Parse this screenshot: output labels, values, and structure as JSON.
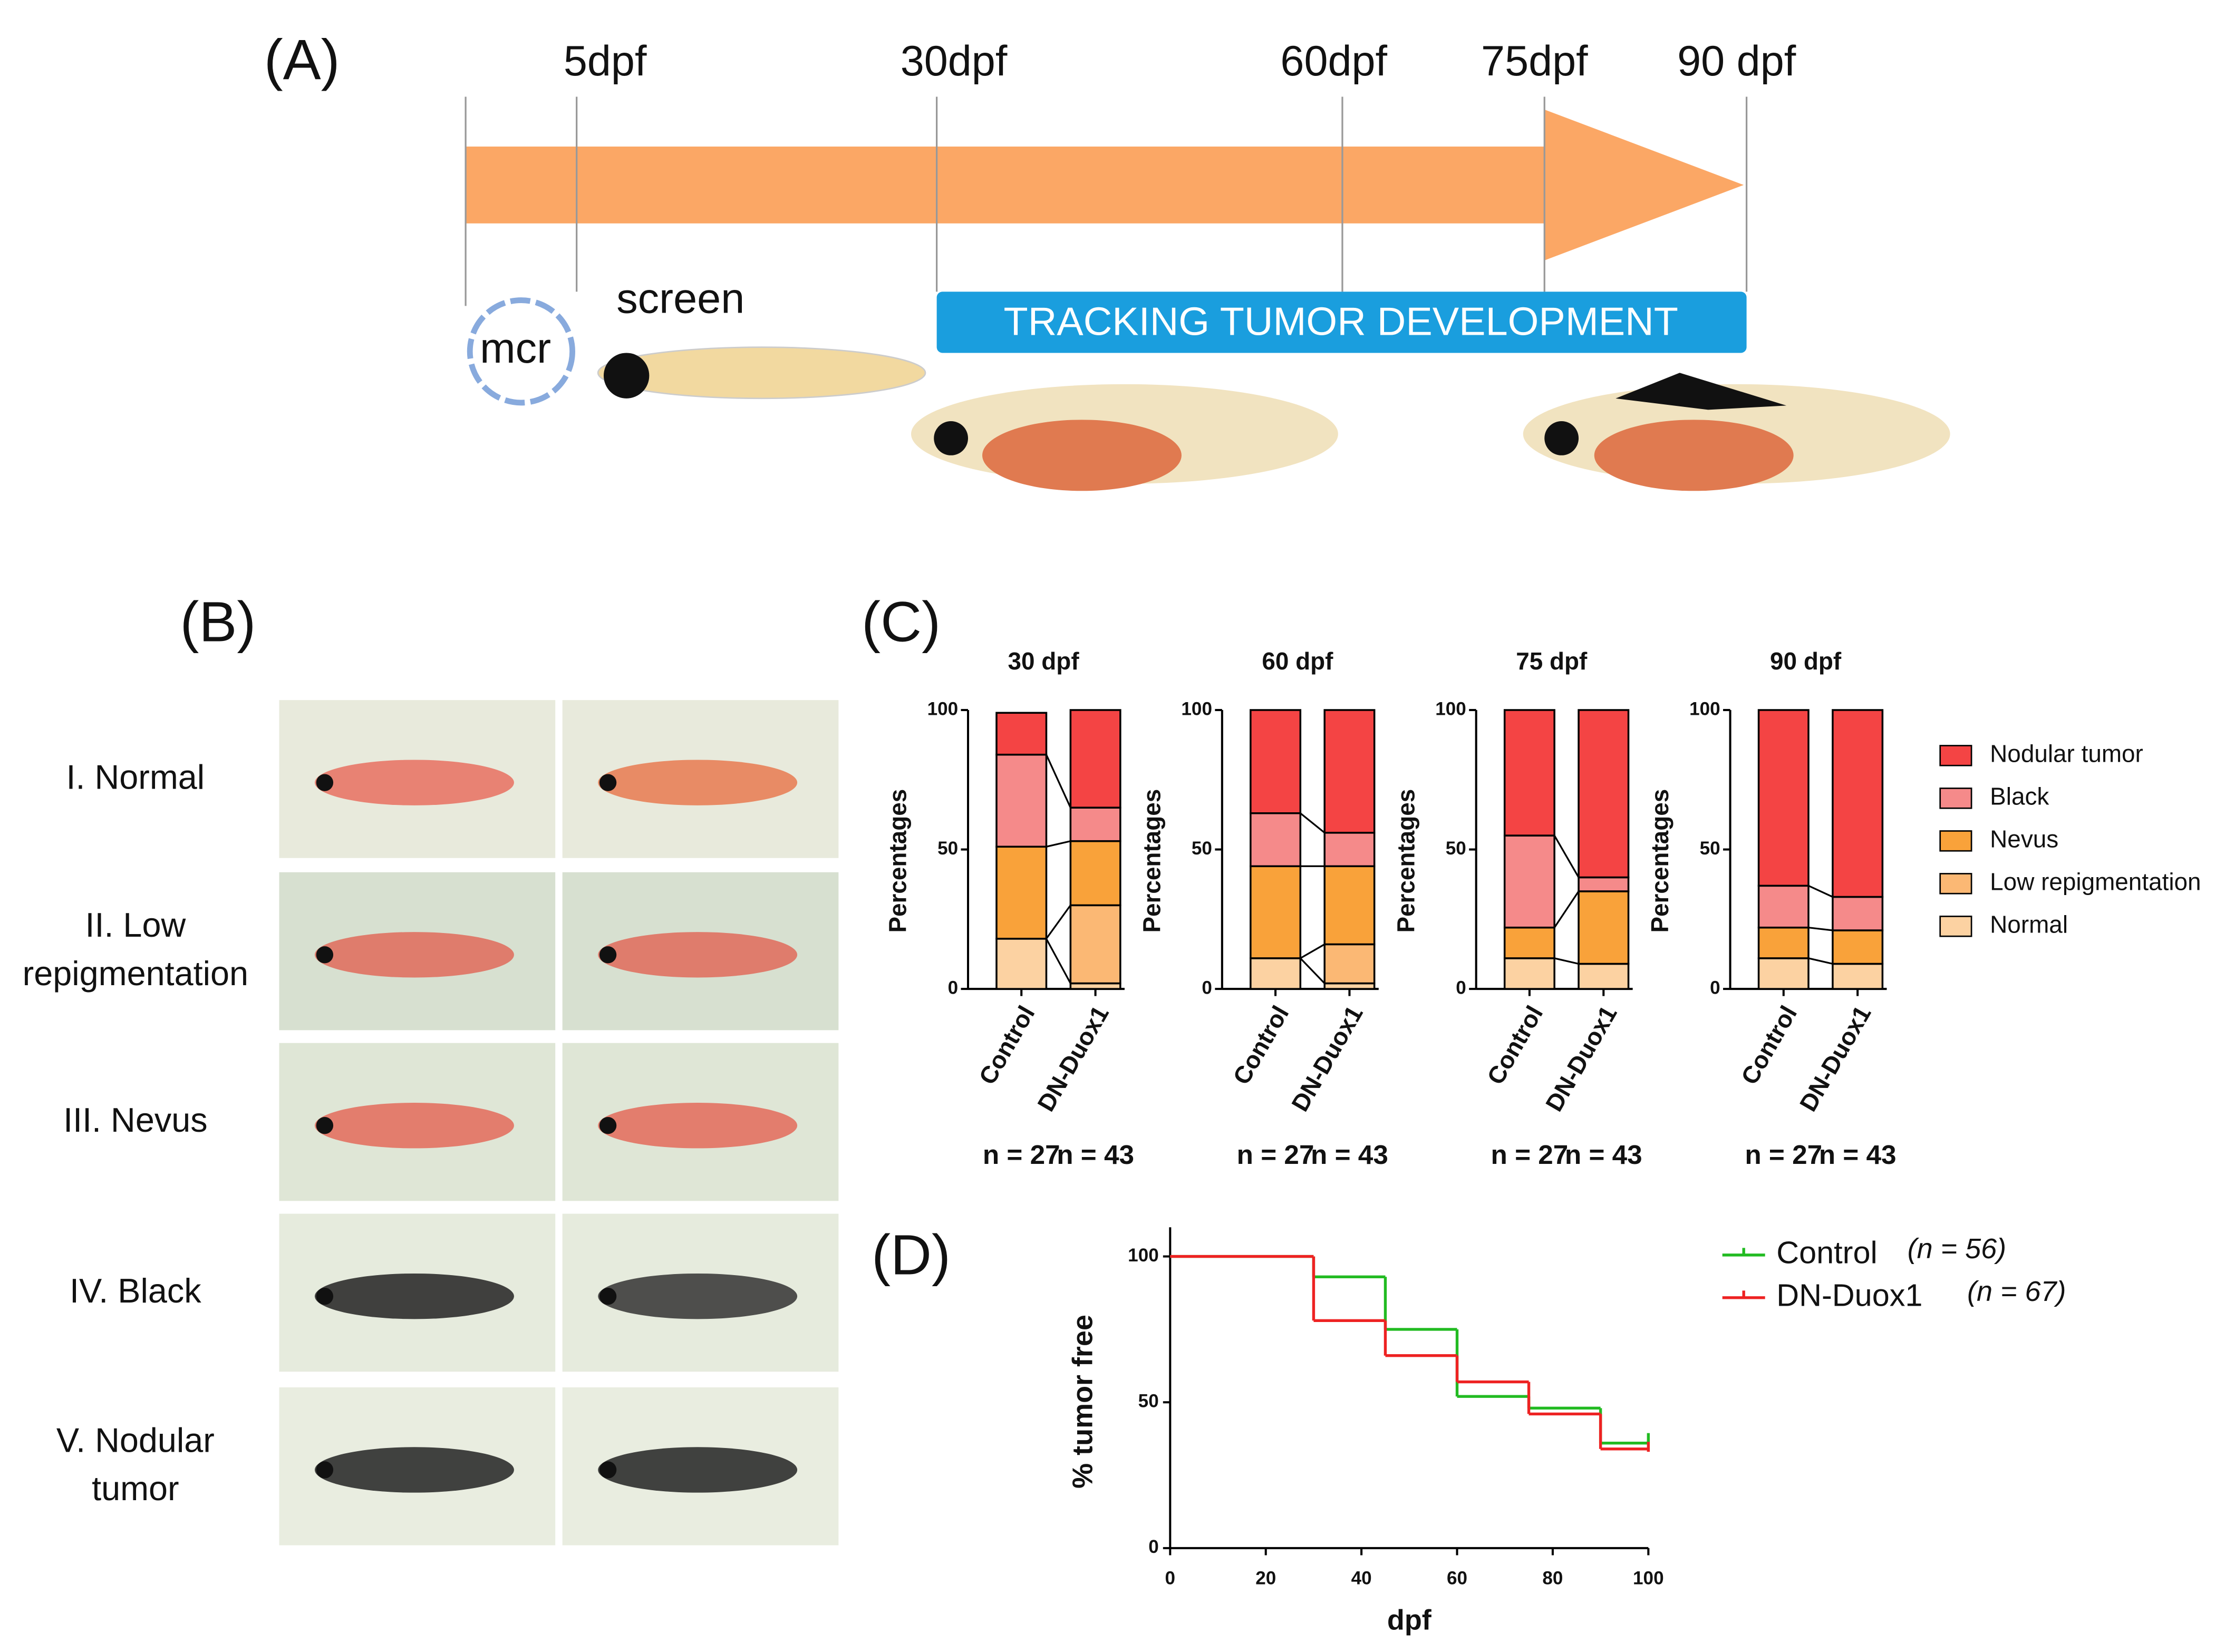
{
  "panel_a": {
    "label": "(A)",
    "times": [
      "5dpf",
      "30dpf",
      "60dpf",
      "75dpf",
      "90 dpf"
    ],
    "plasmid": "mcr",
    "screen": "screen",
    "tracking": "TRACKING TUMOR DEVELOPMENT"
  },
  "panel_b": {
    "label": "(B)",
    "rows": [
      [
        "I. Normal"
      ],
      [
        "II. Low",
        "repigmentation"
      ],
      [
        "III. Nevus"
      ],
      [
        "IV. Black"
      ],
      [
        "V. Nodular",
        "tumor"
      ]
    ]
  },
  "panel_c": {
    "label": "(C)"
  },
  "panel_d": {
    "label": "(D)"
  },
  "chart_data": [
    {
      "type": "bar",
      "stacked": true,
      "ylabel": "Percentages",
      "ylim": [
        0,
        100
      ],
      "yticks": [
        0,
        50,
        100
      ],
      "categories": [
        "Control",
        "DN-Duox1"
      ],
      "series": [
        {
          "name": "Normal",
          "color": "#fcd2a2"
        },
        {
          "name": "Low repigmentation",
          "color": "#fbb874"
        },
        {
          "name": "Nevus",
          "color": "#f9a23a"
        },
        {
          "name": "Black",
          "color": "#f58a8a"
        },
        {
          "name": "Nodular tumor",
          "color": "#f44444"
        }
      ],
      "panels": [
        {
          "title": "30 dpf",
          "n_labels": [
            "n = 27",
            "n = 43"
          ],
          "values": [
            [
              18,
              2
            ],
            [
              0,
              28
            ],
            [
              33,
              23
            ],
            [
              33,
              12
            ],
            [
              15,
              35
            ]
          ]
        },
        {
          "title": "60 dpf",
          "n_labels": [
            "n = 27",
            "n = 43"
          ],
          "values": [
            [
              11,
              2
            ],
            [
              0,
              14
            ],
            [
              33,
              28
            ],
            [
              19,
              12
            ],
            [
              37,
              44
            ]
          ]
        },
        {
          "title": "75 dpf",
          "n_labels": [
            "n = 27",
            "n = 43"
          ],
          "values": [
            [
              11,
              9
            ],
            [
              0,
              0
            ],
            [
              11,
              26
            ],
            [
              33,
              5
            ],
            [
              45,
              60
            ]
          ]
        },
        {
          "title": "90 dpf",
          "n_labels": [
            "n = 27",
            "n = 43"
          ],
          "values": [
            [
              11,
              9
            ],
            [
              0,
              0
            ],
            [
              11,
              12
            ],
            [
              15,
              12
            ],
            [
              63,
              67
            ]
          ]
        }
      ]
    },
    {
      "type": "line",
      "step": true,
      "xlabel": "dpf",
      "ylabel": "% tumor free",
      "xlim": [
        0,
        100
      ],
      "ylim": [
        0,
        110
      ],
      "xticks": [
        0,
        20,
        40,
        60,
        80,
        100
      ],
      "yticks": [
        0,
        50,
        100
      ],
      "series": [
        {
          "name": "Control",
          "n_label": "(n = 56)",
          "color": "#22bb22",
          "x": [
            0,
            30,
            45,
            60,
            75,
            90,
            100
          ],
          "values": [
            100,
            93,
            75,
            52,
            48,
            36,
            37
          ]
        },
        {
          "name": "DN-Duox1",
          "n_label": "(n = 67)",
          "color": "#ee2222",
          "x": [
            0,
            30,
            45,
            60,
            75,
            90,
            100
          ],
          "values": [
            100,
            78,
            66,
            57,
            46,
            34,
            34
          ]
        }
      ]
    }
  ]
}
